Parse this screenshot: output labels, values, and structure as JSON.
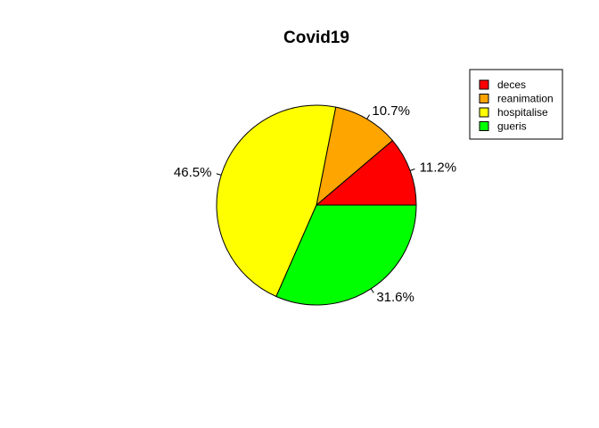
{
  "chart_data": {
    "type": "pie",
    "title": "Covid19",
    "direction": "counter-clockwise",
    "start_angle_deg": 0,
    "legend_position": "top-right",
    "slices": [
      {
        "name": "deces",
        "value": 11.2,
        "label": "11.2%",
        "color": "#FF0000"
      },
      {
        "name": "reanimation",
        "value": 10.7,
        "label": "10.7%",
        "color": "#FFA500"
      },
      {
        "name": "hospitalise",
        "value": 46.5,
        "label": "46.5%",
        "color": "#FFFF00"
      },
      {
        "name": "gueris",
        "value": 31.6,
        "label": "31.6%",
        "color": "#00FF00"
      }
    ]
  }
}
